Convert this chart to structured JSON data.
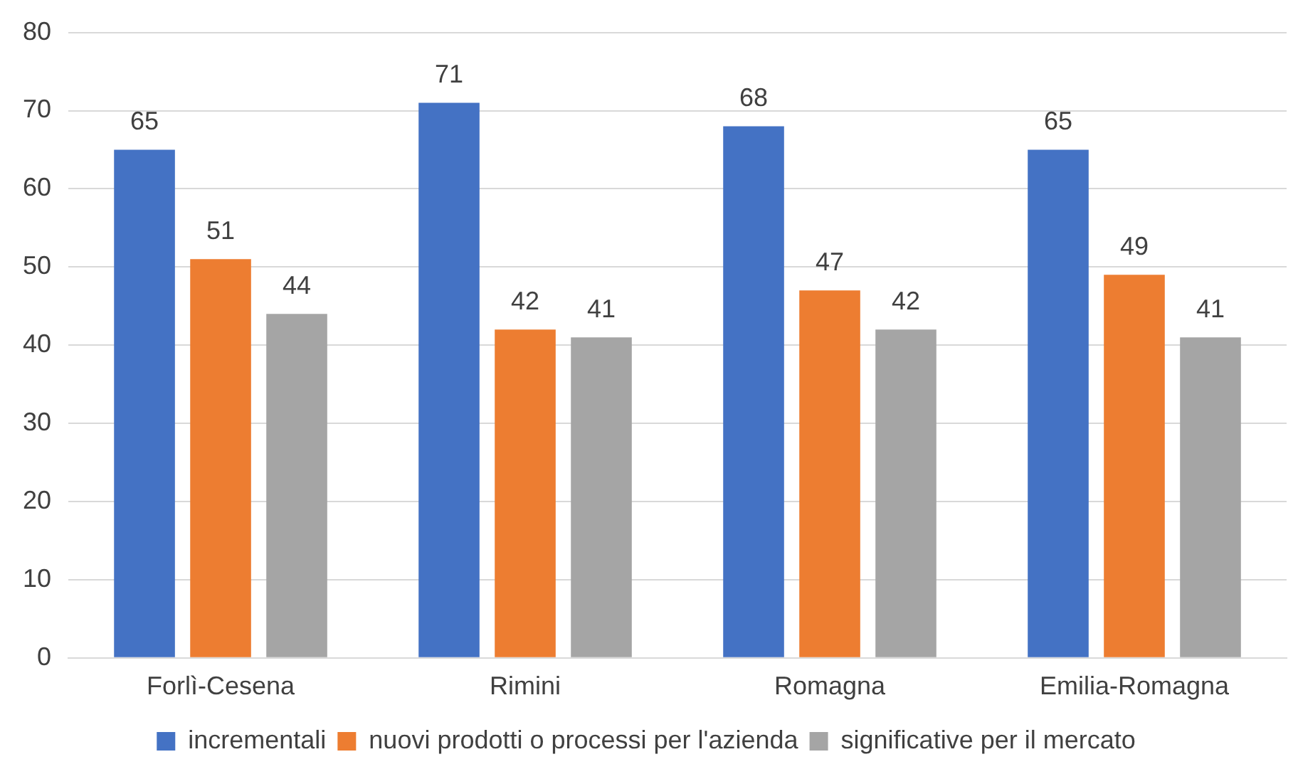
{
  "chart_data": {
    "type": "bar",
    "categories": [
      "Forlì-Cesena",
      "Rimini",
      "Romagna",
      "Emilia-Romagna"
    ],
    "series": [
      {
        "name": "incrementali",
        "color": "#4472c4",
        "values": [
          65,
          71,
          68,
          65
        ]
      },
      {
        "name": "nuovi prodotti o processi per l'azienda",
        "color": "#ed7d31",
        "values": [
          51,
          42,
          47,
          49
        ]
      },
      {
        "name": "significative per il mercato",
        "color": "#a5a5a5",
        "values": [
          44,
          41,
          42,
          41
        ]
      }
    ],
    "ylim": [
      0,
      80
    ],
    "yticks": [
      0,
      10,
      20,
      30,
      40,
      50,
      60,
      70,
      80
    ],
    "grid": "y",
    "legend": "bottom",
    "data_labels": true
  }
}
